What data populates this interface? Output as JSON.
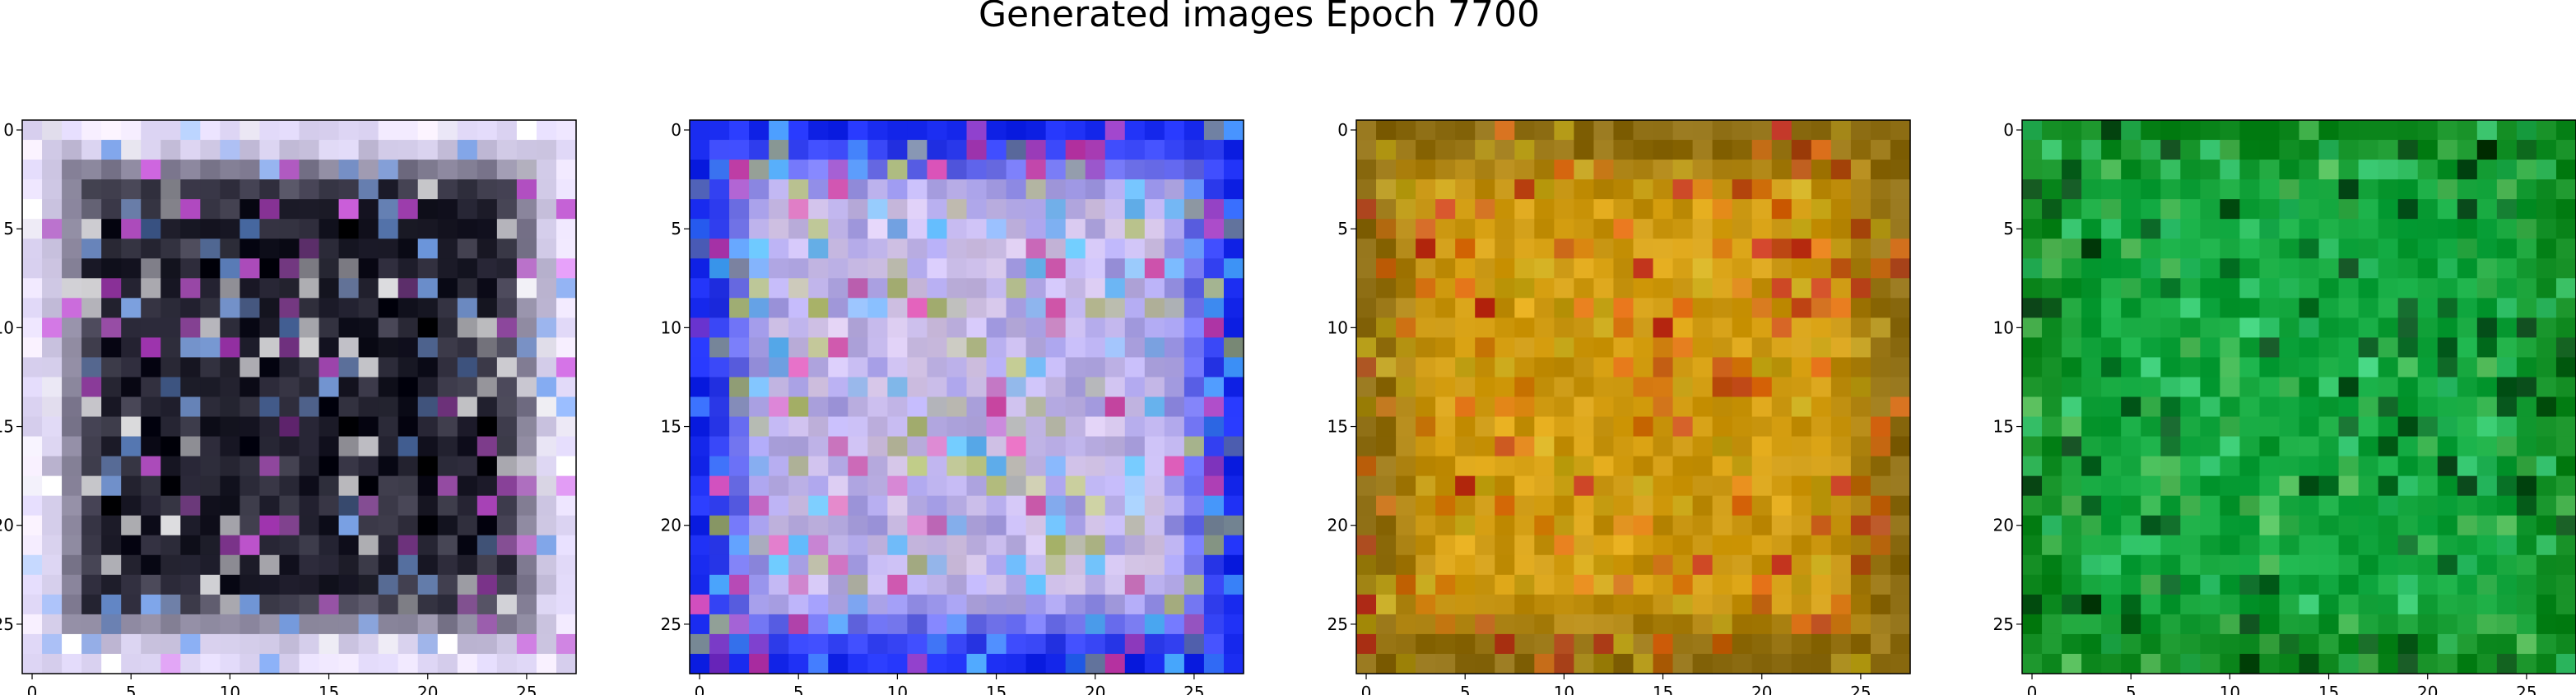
{
  "title": "Generated images Epoch 7700",
  "chart_data": [
    {
      "type": "heatmap",
      "title": "",
      "xlabel": "",
      "ylabel": "",
      "grid_size": [
        28,
        28
      ],
      "xlim": [
        -0.5,
        27.5
      ],
      "ylim": [
        27.5,
        -0.5
      ],
      "xticks": [
        0,
        5,
        10,
        15,
        20,
        25
      ],
      "yticks": [
        0,
        5,
        10,
        15,
        20,
        25
      ],
      "grid": false,
      "dominant_colors": {
        "border": "#e8e0ff",
        "center": "#050510",
        "accents": [
          "#7fb0ff",
          "#d050e0",
          "#ffffff"
        ]
      }
    },
    {
      "type": "heatmap",
      "title": "",
      "xlabel": "",
      "ylabel": "",
      "grid_size": [
        28,
        28
      ],
      "xlim": [
        -0.5,
        27.5
      ],
      "ylim": [
        27.5,
        -0.5
      ],
      "xticks": [
        0,
        5,
        10,
        15,
        20,
        25
      ],
      "yticks": [
        0,
        5,
        10,
        15,
        20,
        25
      ],
      "grid": false,
      "dominant_colors": {
        "border": "#1a2cf0",
        "center": "#d8c8e8",
        "accents": [
          "#50c0ff",
          "#e040a0",
          "#b0c060"
        ]
      }
    },
    {
      "type": "heatmap",
      "title": "",
      "xlabel": "",
      "ylabel": "",
      "grid_size": [
        28,
        28
      ],
      "xlim": [
        -0.5,
        27.5
      ],
      "ylim": [
        27.5,
        -0.5
      ],
      "xticks": [
        0,
        5,
        10,
        15,
        20,
        25
      ],
      "yticks": [
        0,
        5,
        10,
        15,
        20,
        25
      ],
      "grid": false,
      "dominant_colors": {
        "border": "#8a6a10",
        "center": "#d8a010",
        "accents": [
          "#e06010",
          "#c02020",
          "#c8b020"
        ]
      }
    },
    {
      "type": "heatmap",
      "title": "",
      "xlabel": "",
      "ylabel": "",
      "grid_size": [
        28,
        28
      ],
      "xlim": [
        -0.5,
        27.5
      ],
      "ylim": [
        27.5,
        -0.5
      ],
      "xticks": [
        0,
        5,
        10,
        15,
        20,
        25
      ],
      "yticks": [
        0,
        5,
        10,
        15,
        20,
        25
      ],
      "grid": false,
      "dominant_colors": {
        "border": "#108a20",
        "center": "#10a840",
        "accents": [
          "#40d080",
          "#053010",
          "#60c060"
        ]
      }
    }
  ]
}
